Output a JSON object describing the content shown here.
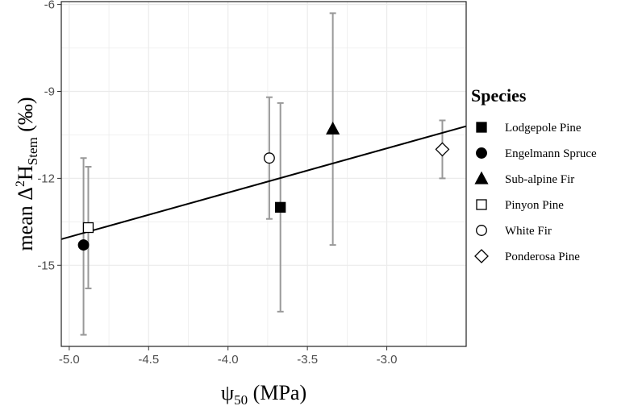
{
  "chart_data": {
    "type": "scatter",
    "xlabel_symbol": "ψ",
    "xlabel_sub": "50",
    "xlabel_unit": " (MPa)",
    "ylabel_prefix": "mean Δ",
    "ylabel_sup": "2",
    "ylabel_H": "H",
    "ylabel_sub": "Stem",
    "ylabel_unit": " (‰)",
    "xlim": [
      -5.05,
      -2.5
    ],
    "ylim": [
      -17.8,
      -5.9
    ],
    "x_ticks": [
      -5.0,
      -4.5,
      -4.0,
      -3.5,
      -3.0
    ],
    "x_tick_labels": [
      "-5.0",
      "-4.5",
      "-4.0",
      "-3.5",
      "-3.0"
    ],
    "y_ticks": [
      -15,
      -12,
      -9,
      -6
    ],
    "y_tick_labels": [
      "-15",
      "-12",
      "-9",
      "-6"
    ],
    "grid": true,
    "legend_position": "right",
    "legend_title": "Species",
    "series": [
      {
        "name": "Lodgepole Pine",
        "marker": "filled-square",
        "x": -3.67,
        "y": -13.0,
        "ymin": -16.6,
        "ymax": -9.4
      },
      {
        "name": "Engelmann Spruce",
        "marker": "filled-circle",
        "x": -4.91,
        "y": -14.3,
        "ymin": -17.4,
        "ymax": -11.3
      },
      {
        "name": "Sub-alpine Fir",
        "marker": "filled-triangle",
        "x": -3.34,
        "y": -10.3,
        "ymin": -14.3,
        "ymax": -6.3
      },
      {
        "name": "Pinyon Pine",
        "marker": "open-square",
        "x": -4.88,
        "y": -13.7,
        "ymin": -15.8,
        "ymax": -11.6
      },
      {
        "name": "White Fir",
        "marker": "open-circle",
        "x": -3.74,
        "y": -11.3,
        "ymin": -13.4,
        "ymax": -9.2
      },
      {
        "name": "Ponderosa Pine",
        "marker": "open-diamond",
        "x": -2.65,
        "y": -11.0,
        "ymin": -12.0,
        "ymax": -10.0
      }
    ],
    "regression_line": {
      "x": [
        -5.05,
        -2.5
      ],
      "y": [
        -14.1,
        -10.2
      ]
    },
    "colors": {
      "errorbar": "#999999",
      "grid": "#ebebeb",
      "marker": "#000000",
      "line": "#000000"
    }
  }
}
